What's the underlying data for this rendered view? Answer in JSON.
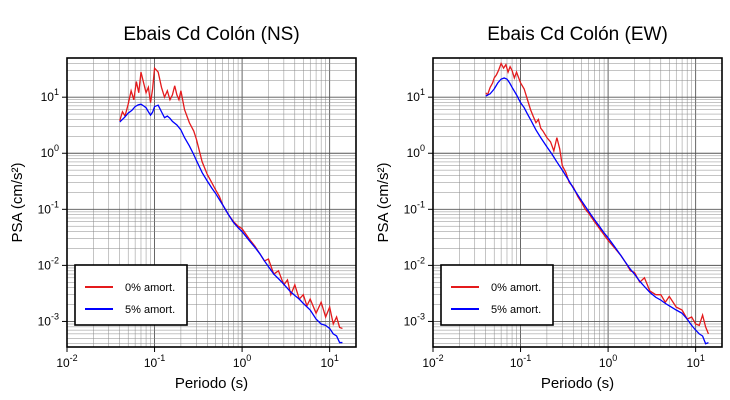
{
  "chart_data": [
    {
      "type": "line",
      "title": "Ebais Cd Colón (NS)",
      "xlabel": "Periodo (s)",
      "ylabel": "PSA (cm/s²)",
      "x_scale": "log",
      "y_scale": "log",
      "xlim": [
        0.01,
        20
      ],
      "ylim": [
        0.00035,
        50
      ],
      "x_ticks": [
        0.01,
        0.1,
        1,
        10
      ],
      "x_tick_labels": [
        [
          "10",
          "-2"
        ],
        [
          "10",
          "-1"
        ],
        [
          "10",
          "0"
        ],
        [
          "10",
          "1"
        ]
      ],
      "y_ticks": [
        0.001,
        0.01,
        0.1,
        1,
        10
      ],
      "y_tick_labels": [
        [
          "10",
          "-3"
        ],
        [
          "10",
          "-2"
        ],
        [
          "10",
          "-1"
        ],
        [
          "10",
          "0"
        ],
        [
          "10",
          "1"
        ]
      ],
      "grid": true,
      "legend_position": "bottom-left",
      "series": [
        {
          "name": "0% amort.",
          "color": "#e41a1c",
          "points": [
            [
              0.04,
              3.8
            ],
            [
              0.043,
              5.5
            ],
            [
              0.046,
              4.6
            ],
            [
              0.05,
              7.5
            ],
            [
              0.054,
              13
            ],
            [
              0.058,
              9
            ],
            [
              0.062,
              19
            ],
            [
              0.066,
              12
            ],
            [
              0.07,
              28
            ],
            [
              0.075,
              18
            ],
            [
              0.08,
              12
            ],
            [
              0.085,
              15
            ],
            [
              0.09,
              8
            ],
            [
              0.095,
              14
            ],
            [
              0.1,
              33
            ],
            [
              0.11,
              28
            ],
            [
              0.12,
              15
            ],
            [
              0.13,
              10
            ],
            [
              0.14,
              13
            ],
            [
              0.15,
              9
            ],
            [
              0.16,
              11
            ],
            [
              0.17,
              16
            ],
            [
              0.18,
              11
            ],
            [
              0.19,
              9
            ],
            [
              0.2,
              13
            ],
            [
              0.22,
              6
            ],
            [
              0.25,
              3.5
            ],
            [
              0.28,
              2.5
            ],
            [
              0.3,
              1.8
            ],
            [
              0.35,
              0.7
            ],
            [
              0.4,
              0.42
            ],
            [
              0.45,
              0.3
            ],
            [
              0.5,
              0.22
            ],
            [
              0.55,
              0.17
            ],
            [
              0.6,
              0.12
            ],
            [
              0.7,
              0.08
            ],
            [
              0.8,
              0.06
            ],
            [
              0.9,
              0.05
            ],
            [
              1.0,
              0.045
            ],
            [
              1.2,
              0.03
            ],
            [
              1.4,
              0.022
            ],
            [
              1.6,
              0.016
            ],
            [
              1.8,
              0.012
            ],
            [
              2.0,
              0.013
            ],
            [
              2.3,
              0.007
            ],
            [
              2.6,
              0.008
            ],
            [
              3.0,
              0.0045
            ],
            [
              3.3,
              0.0055
            ],
            [
              3.6,
              0.003
            ],
            [
              4.0,
              0.0045
            ],
            [
              4.5,
              0.0025
            ],
            [
              5.0,
              0.003
            ],
            [
              5.5,
              0.0019
            ],
            [
              6.0,
              0.0025
            ],
            [
              7.0,
              0.0014
            ],
            [
              8.0,
              0.0022
            ],
            [
              9.0,
              0.0012
            ],
            [
              10.0,
              0.0018
            ],
            [
              11.0,
              0.0009
            ],
            [
              12.0,
              0.0012
            ],
            [
              13.0,
              0.00078
            ],
            [
              14.0,
              0.00075
            ]
          ]
        },
        {
          "name": "5% amort.",
          "color": "#0000ff",
          "points": [
            [
              0.04,
              3.6
            ],
            [
              0.045,
              4.3
            ],
            [
              0.05,
              5.2
            ],
            [
              0.055,
              5.8
            ],
            [
              0.06,
              6.8
            ],
            [
              0.065,
              7.3
            ],
            [
              0.07,
              7.5
            ],
            [
              0.075,
              7
            ],
            [
              0.08,
              6.5
            ],
            [
              0.085,
              5.5
            ],
            [
              0.09,
              4.8
            ],
            [
              0.095,
              5.4
            ],
            [
              0.1,
              6.8
            ],
            [
              0.11,
              7.2
            ],
            [
              0.12,
              5.5
            ],
            [
              0.13,
              4.3
            ],
            [
              0.14,
              4.6
            ],
            [
              0.15,
              4.2
            ],
            [
              0.16,
              3.7
            ],
            [
              0.18,
              3.2
            ],
            [
              0.2,
              2.6
            ],
            [
              0.22,
              1.9
            ],
            [
              0.25,
              1.35
            ],
            [
              0.28,
              0.95
            ],
            [
              0.3,
              0.75
            ],
            [
              0.35,
              0.45
            ],
            [
              0.4,
              0.32
            ],
            [
              0.45,
              0.24
            ],
            [
              0.5,
              0.19
            ],
            [
              0.6,
              0.12
            ],
            [
              0.7,
              0.08
            ],
            [
              0.8,
              0.058
            ],
            [
              0.9,
              0.047
            ],
            [
              1.0,
              0.04
            ],
            [
              1.2,
              0.028
            ],
            [
              1.4,
              0.021
            ],
            [
              1.6,
              0.016
            ],
            [
              1.8,
              0.012
            ],
            [
              2.0,
              0.0095
            ],
            [
              2.3,
              0.007
            ],
            [
              2.6,
              0.0058
            ],
            [
              3.0,
              0.0046
            ],
            [
              3.5,
              0.0035
            ],
            [
              4.0,
              0.0029
            ],
            [
              4.5,
              0.0025
            ],
            [
              5.0,
              0.0021
            ],
            [
              6.0,
              0.0016
            ],
            [
              7.0,
              0.0011
            ],
            [
              8.0,
              0.0009
            ],
            [
              9.0,
              0.00085
            ],
            [
              10.0,
              0.00075
            ],
            [
              11.0,
              0.0006
            ],
            [
              12.0,
              0.00055
            ],
            [
              13.0,
              0.00042
            ],
            [
              14.0,
              0.00042
            ]
          ]
        }
      ]
    },
    {
      "type": "line",
      "title": "Ebais Cd Colón (EW)",
      "xlabel": "Periodo (s)",
      "ylabel": "PSA (cm/s²)",
      "x_scale": "log",
      "y_scale": "log",
      "xlim": [
        0.01,
        20
      ],
      "ylim": [
        0.00035,
        50
      ],
      "x_ticks": [
        0.01,
        0.1,
        1,
        10
      ],
      "x_tick_labels": [
        [
          "10",
          "-2"
        ],
        [
          "10",
          "-1"
        ],
        [
          "10",
          "0"
        ],
        [
          "10",
          "1"
        ]
      ],
      "y_ticks": [
        0.001,
        0.01,
        0.1,
        1,
        10
      ],
      "y_tick_labels": [
        [
          "10",
          "-3"
        ],
        [
          "10",
          "-2"
        ],
        [
          "10",
          "-1"
        ],
        [
          "10",
          "0"
        ],
        [
          "10",
          "1"
        ]
      ],
      "grid": true,
      "legend_position": "bottom-left",
      "series": [
        {
          "name": "0% amort.",
          "color": "#e41a1c",
          "points": [
            [
              0.04,
              12
            ],
            [
              0.042,
              11
            ],
            [
              0.045,
              15
            ],
            [
              0.048,
              18
            ],
            [
              0.05,
              22
            ],
            [
              0.053,
              25
            ],
            [
              0.056,
              30
            ],
            [
              0.06,
              40
            ],
            [
              0.064,
              33
            ],
            [
              0.068,
              38
            ],
            [
              0.072,
              28
            ],
            [
              0.076,
              35
            ],
            [
              0.08,
              30
            ],
            [
              0.085,
              22
            ],
            [
              0.09,
              28
            ],
            [
              0.1,
              18
            ],
            [
              0.11,
              14
            ],
            [
              0.12,
              9
            ],
            [
              0.13,
              6
            ],
            [
              0.14,
              4.5
            ],
            [
              0.15,
              3.5
            ],
            [
              0.16,
              4
            ],
            [
              0.17,
              2.8
            ],
            [
              0.18,
              2.5
            ],
            [
              0.2,
              1.9
            ],
            [
              0.22,
              1.6
            ],
            [
              0.24,
              1.1
            ],
            [
              0.26,
              1.9
            ],
            [
              0.28,
              1.2
            ],
            [
              0.3,
              0.6
            ],
            [
              0.33,
              0.45
            ],
            [
              0.36,
              0.3
            ],
            [
              0.4,
              0.25
            ],
            [
              0.45,
              0.17
            ],
            [
              0.5,
              0.13
            ],
            [
              0.55,
              0.1
            ],
            [
              0.6,
              0.085
            ],
            [
              0.7,
              0.06
            ],
            [
              0.8,
              0.045
            ],
            [
              0.9,
              0.035
            ],
            [
              1.0,
              0.028
            ],
            [
              1.2,
              0.02
            ],
            [
              1.4,
              0.015
            ],
            [
              1.6,
              0.011
            ],
            [
              1.8,
              0.008
            ],
            [
              2.0,
              0.0075
            ],
            [
              2.3,
              0.005
            ],
            [
              2.6,
              0.006
            ],
            [
              3.0,
              0.0035
            ],
            [
              3.5,
              0.003
            ],
            [
              4.0,
              0.003
            ],
            [
              4.5,
              0.0022
            ],
            [
              5.0,
              0.0028
            ],
            [
              6.0,
              0.0018
            ],
            [
              7.0,
              0.0016
            ],
            [
              8.0,
              0.0011
            ],
            [
              9.0,
              0.0012
            ],
            [
              10.0,
              0.0009
            ],
            [
              11.0,
              0.00085
            ],
            [
              12.0,
              0.0013
            ],
            [
              13.0,
              0.0008
            ],
            [
              14.0,
              0.0006
            ]
          ]
        },
        {
          "name": "5% amort.",
          "color": "#0000ff",
          "points": [
            [
              0.04,
              10.5
            ],
            [
              0.045,
              11.5
            ],
            [
              0.05,
              14
            ],
            [
              0.055,
              18
            ],
            [
              0.06,
              21
            ],
            [
              0.065,
              22
            ],
            [
              0.07,
              21
            ],
            [
              0.075,
              18
            ],
            [
              0.08,
              15
            ],
            [
              0.09,
              11
            ],
            [
              0.1,
              8
            ],
            [
              0.11,
              6.5
            ],
            [
              0.12,
              5
            ],
            [
              0.13,
              4
            ],
            [
              0.14,
              3.2
            ],
            [
              0.15,
              2.6
            ],
            [
              0.17,
              1.9
            ],
            [
              0.2,
              1.3
            ],
            [
              0.23,
              0.95
            ],
            [
              0.26,
              0.7
            ],
            [
              0.3,
              0.5
            ],
            [
              0.35,
              0.34
            ],
            [
              0.4,
              0.24
            ],
            [
              0.45,
              0.18
            ],
            [
              0.5,
              0.14
            ],
            [
              0.6,
              0.092
            ],
            [
              0.7,
              0.065
            ],
            [
              0.8,
              0.049
            ],
            [
              0.9,
              0.038
            ],
            [
              1.0,
              0.031
            ],
            [
              1.2,
              0.021
            ],
            [
              1.4,
              0.015
            ],
            [
              1.6,
              0.011
            ],
            [
              1.8,
              0.0085
            ],
            [
              2.0,
              0.007
            ],
            [
              2.3,
              0.0052
            ],
            [
              2.6,
              0.0042
            ],
            [
              3.0,
              0.0033
            ],
            [
              3.5,
              0.0027
            ],
            [
              4.0,
              0.0024
            ],
            [
              4.5,
              0.0021
            ],
            [
              5.0,
              0.0019
            ],
            [
              6.0,
              0.0016
            ],
            [
              7.0,
              0.0014
            ],
            [
              8.0,
              0.0011
            ],
            [
              9.0,
              0.00085
            ],
            [
              10.0,
              0.0007
            ],
            [
              11.0,
              0.0006
            ],
            [
              12.0,
              0.00055
            ],
            [
              13.0,
              0.0004
            ],
            [
              14.0,
              0.00042
            ]
          ]
        }
      ]
    }
  ]
}
